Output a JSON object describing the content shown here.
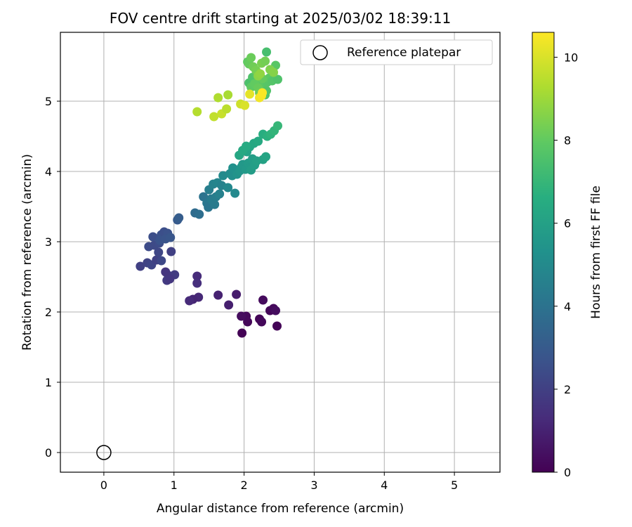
{
  "chart_data": {
    "type": "scatter",
    "title": "FOV centre drift starting at 2025/03/02 18:39:11",
    "xlabel": "Angular distance from reference (arcmin)",
    "ylabel": "Rotation from reference (arcmin)",
    "xlim": [
      -0.62,
      5.65
    ],
    "ylim": [
      -0.28,
      5.98
    ],
    "xticks": [
      0,
      1,
      2,
      3,
      4,
      5
    ],
    "yticks": [
      0,
      1,
      2,
      3,
      4,
      5
    ],
    "grid": true,
    "legend": {
      "position": "top-right",
      "entries": [
        "Reference platepar"
      ]
    },
    "reference_point": {
      "name": "Reference platepar",
      "x": 0,
      "y": 0
    },
    "colorbar": {
      "label": "Hours from first FF file",
      "colormap": "viridis",
      "range": [
        0,
        10.6
      ],
      "ticks": [
        0,
        2,
        4,
        6,
        8,
        10
      ]
    },
    "series": [
      {
        "points": [
          [
            1.97,
            1.7,
            0.05
          ],
          [
            2.05,
            1.86,
            0.15
          ],
          [
            2.03,
            1.94,
            0.25
          ],
          [
            1.96,
            1.94,
            0.35
          ],
          [
            2.22,
            1.9,
            0.1
          ],
          [
            2.25,
            1.86,
            0.2
          ],
          [
            2.27,
            2.17,
            0.3
          ],
          [
            2.37,
            2.02,
            0.15
          ],
          [
            2.42,
            2.05,
            0.25
          ],
          [
            2.45,
            2.02,
            0.35
          ],
          [
            2.47,
            1.8,
            0.1
          ],
          [
            1.89,
            2.25,
            0.8
          ],
          [
            1.63,
            2.24,
            1.0
          ],
          [
            1.78,
            2.1,
            0.9
          ],
          [
            1.33,
            2.51,
            1.3
          ],
          [
            1.33,
            2.41,
            1.4
          ],
          [
            1.35,
            2.21,
            1.2
          ],
          [
            1.27,
            2.18,
            1.1
          ],
          [
            1.22,
            2.16,
            1.25
          ],
          [
            0.9,
            2.45,
            1.8
          ],
          [
            0.92,
            2.52,
            1.9
          ],
          [
            1.01,
            2.53,
            1.85
          ],
          [
            0.94,
            2.47,
            1.7
          ],
          [
            0.88,
            2.57,
            1.6
          ],
          [
            0.52,
            2.65,
            2.0
          ],
          [
            0.62,
            2.7,
            2.1
          ],
          [
            0.68,
            2.67,
            2.2
          ],
          [
            0.75,
            2.74,
            2.05
          ],
          [
            0.82,
            2.73,
            2.3
          ],
          [
            0.64,
            2.93,
            2.4
          ],
          [
            0.72,
            2.95,
            2.35
          ],
          [
            0.79,
            2.98,
            2.45
          ],
          [
            0.7,
            3.07,
            2.5
          ],
          [
            0.82,
            3.1,
            2.6
          ],
          [
            0.86,
            3.14,
            2.55
          ],
          [
            0.91,
            3.12,
            2.65
          ],
          [
            0.8,
            3.02,
            2.7
          ],
          [
            0.88,
            3.04,
            2.75
          ],
          [
            0.95,
            3.06,
            2.8
          ],
          [
            0.78,
            2.85,
            2.25
          ],
          [
            0.96,
            2.86,
            2.0
          ],
          [
            1.05,
            3.31,
            3.0
          ],
          [
            1.07,
            3.34,
            3.1
          ],
          [
            1.3,
            3.41,
            3.7
          ],
          [
            1.36,
            3.39,
            3.8
          ],
          [
            1.42,
            3.64,
            4.0
          ],
          [
            1.47,
            3.55,
            4.2
          ],
          [
            1.49,
            3.49,
            4.1
          ],
          [
            1.53,
            3.61,
            4.3
          ],
          [
            1.55,
            3.58,
            4.4
          ],
          [
            1.5,
            3.74,
            4.5
          ],
          [
            1.58,
            3.53,
            4.35
          ],
          [
            1.6,
            3.64,
            4.45
          ],
          [
            1.65,
            3.68,
            4.6
          ],
          [
            1.56,
            3.82,
            4.7
          ],
          [
            1.62,
            3.84,
            4.8
          ],
          [
            1.68,
            3.8,
            4.65
          ],
          [
            1.7,
            3.94,
            5.0
          ],
          [
            1.77,
            3.77,
            4.9
          ],
          [
            1.8,
            3.97,
            5.1
          ],
          [
            1.83,
            3.94,
            5.2
          ],
          [
            1.87,
            3.69,
            4.95
          ],
          [
            1.84,
            4.05,
            5.3
          ],
          [
            1.9,
            3.96,
            5.4
          ],
          [
            1.94,
            4.01,
            5.5
          ],
          [
            1.96,
            4.06,
            5.55
          ],
          [
            1.98,
            4.1,
            5.6
          ],
          [
            2.02,
            4.03,
            5.65
          ],
          [
            2.06,
            4.12,
            5.75
          ],
          [
            2.08,
            4.05,
            5.7
          ],
          [
            2.1,
            4.02,
            5.8
          ],
          [
            2.12,
            4.18,
            5.85
          ],
          [
            2.15,
            4.09,
            5.9
          ],
          [
            2.18,
            4.15,
            6.0
          ],
          [
            2.04,
            4.28,
            6.1
          ],
          [
            2.08,
            4.35,
            6.2
          ],
          [
            2.14,
            4.4,
            6.3
          ],
          [
            2.2,
            4.43,
            6.4
          ],
          [
            2.27,
            4.17,
            6.05
          ],
          [
            2.31,
            4.21,
            6.15
          ],
          [
            1.93,
            4.23,
            6.25
          ],
          [
            1.98,
            4.3,
            6.35
          ],
          [
            2.03,
            4.36,
            6.45
          ],
          [
            2.27,
            4.53,
            6.6
          ],
          [
            2.33,
            4.5,
            6.7
          ],
          [
            2.38,
            4.53,
            6.8
          ],
          [
            2.43,
            4.58,
            6.9
          ],
          [
            2.48,
            4.65,
            7.0
          ],
          [
            2.07,
            5.26,
            7.5
          ],
          [
            2.12,
            5.34,
            7.6
          ],
          [
            2.18,
            5.37,
            7.7
          ],
          [
            2.24,
            5.29,
            7.8
          ],
          [
            2.28,
            5.22,
            7.85
          ],
          [
            2.3,
            5.09,
            7.55
          ],
          [
            2.32,
            5.15,
            7.65
          ],
          [
            2.33,
            5.27,
            7.75
          ],
          [
            2.36,
            5.33,
            7.9
          ],
          [
            2.1,
            5.2,
            7.95
          ],
          [
            2.15,
            5.25,
            8.0
          ],
          [
            2.2,
            5.19,
            8.1
          ],
          [
            2.22,
            5.12,
            8.2
          ],
          [
            2.26,
            5.32,
            8.05
          ],
          [
            2.4,
            5.29,
            7.7
          ],
          [
            2.45,
            5.51,
            7.8
          ],
          [
            2.48,
            5.31,
            7.6
          ],
          [
            2.05,
            5.56,
            7.95
          ],
          [
            2.07,
            5.53,
            8.05
          ],
          [
            2.1,
            5.62,
            8.15
          ],
          [
            2.13,
            5.49,
            8.25
          ],
          [
            2.17,
            5.44,
            8.35
          ],
          [
            2.25,
            5.54,
            8.4
          ],
          [
            2.3,
            5.57,
            8.3
          ],
          [
            2.32,
            5.7,
            7.4
          ],
          [
            2.37,
            5.45,
            8.5
          ],
          [
            2.42,
            5.41,
            8.6
          ],
          [
            2.2,
            5.36,
            8.7
          ],
          [
            2.23,
            5.39,
            8.8
          ],
          [
            1.33,
            4.85,
            9.4
          ],
          [
            1.57,
            4.78,
            9.6
          ],
          [
            1.63,
            5.05,
            9.3
          ],
          [
            1.68,
            4.82,
            9.7
          ],
          [
            1.75,
            4.89,
            9.5
          ],
          [
            1.77,
            5.09,
            9.2
          ],
          [
            1.95,
            4.96,
            9.8
          ],
          [
            2.01,
            4.94,
            10.0
          ],
          [
            2.08,
            5.1,
            10.2
          ],
          [
            2.22,
            5.05,
            10.4
          ],
          [
            2.25,
            5.08,
            10.5
          ],
          [
            2.26,
            5.12,
            10.55
          ]
        ]
      }
    ]
  }
}
